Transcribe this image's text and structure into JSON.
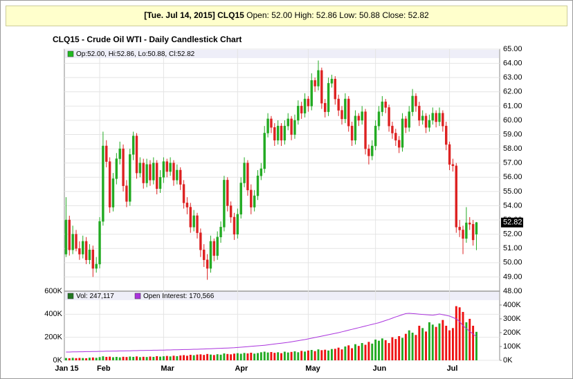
{
  "header": {
    "date": "[Tue. Jul 14, 2015]",
    "symbol": "CLQ15",
    "quote": "Open: 52.00 High: 52.86 Low: 50.88 Close: 52.82"
  },
  "chart_data": [
    {
      "type": "candlestick",
      "title": "CLQ15 - Crude Oil WTI - Daily Candlestick Chart",
      "legend": "Op:52.00, Hi:52.86, Lo:50.88, Cl:52.82",
      "legend_color": "#22bb22",
      "last_label": "52.82",
      "up_color": "#22aa22",
      "down_color": "#dd2222",
      "xlim": [
        -0.5,
        128.9
      ],
      "xticks": [
        {
          "value": 0,
          "label": "Jan 15"
        },
        {
          "value": 10,
          "label": "Feb"
        },
        {
          "value": 29,
          "label": "Mar"
        },
        {
          "value": 51,
          "label": "Apr"
        },
        {
          "value": 72,
          "label": "May"
        },
        {
          "value": 92,
          "label": "Jun"
        },
        {
          "value": 114,
          "label": "Jul"
        }
      ],
      "ylim": [
        48,
        65
      ],
      "yticks": [
        {
          "value": 48,
          "label": "48.00"
        },
        {
          "value": 49,
          "label": "49.00"
        },
        {
          "value": 50,
          "label": "50.00"
        },
        {
          "value": 51,
          "label": "51.00"
        },
        {
          "value": 52,
          "label": "52.00"
        },
        {
          "value": 53,
          "label": "53.00"
        },
        {
          "value": 54,
          "label": "54.00"
        },
        {
          "value": 55,
          "label": "55.00"
        },
        {
          "value": 56,
          "label": "56.00"
        },
        {
          "value": 57,
          "label": "57.00"
        },
        {
          "value": 58,
          "label": "58.00"
        },
        {
          "value": 59,
          "label": "59.00"
        },
        {
          "value": 60,
          "label": "60.00"
        },
        {
          "value": 61,
          "label": "61.00"
        },
        {
          "value": 62,
          "label": "62.00"
        },
        {
          "value": 63,
          "label": "63.00"
        },
        {
          "value": 64,
          "label": "64.00"
        },
        {
          "value": 65,
          "label": "65.00"
        }
      ],
      "grid": true,
      "open": [
        50.6,
        53.0,
        50.9,
        52.0,
        51.0,
        50.6,
        51.5,
        50.2,
        50.9,
        49.6,
        49.9,
        52.9,
        58.2,
        57.1,
        53.9,
        55.9,
        57.3,
        58.0,
        55.4,
        54.3,
        57.6,
        58.9,
        56.3,
        57.0,
        55.6,
        56.9,
        55.8,
        57.0,
        55.2,
        56.0,
        57.1,
        56.4,
        57.0,
        55.8,
        56.5,
        55.5,
        54.2,
        53.9,
        52.5,
        53.3,
        52.1,
        50.9,
        50.2,
        49.6,
        51.5,
        50.5,
        51.8,
        52.5,
        55.8,
        54.0,
        53.2,
        52.0,
        53.4,
        55.6,
        57.0,
        55.1,
        53.9,
        54.7,
        56.1,
        56.6,
        59.1,
        60.1,
        59.5,
        58.6,
        59.6,
        58.6,
        59.6,
        60.1,
        59.0,
        60.0,
        61.0,
        60.5,
        61.5,
        61.0,
        62.8,
        62.4,
        63.5,
        61.2,
        60.6,
        62.6,
        62.9,
        61.5,
        60.7,
        60.1,
        61.5,
        59.6,
        58.6,
        60.3,
        60.0,
        60.6,
        58.0,
        57.5,
        58.2,
        59.6,
        60.6,
        61.3,
        60.9,
        59.6,
        59.1,
        58.6,
        58.1,
        60.1,
        59.5,
        60.6,
        61.7,
        61.0,
        60.0,
        60.3,
        59.5,
        60.0,
        60.5,
        59.9,
        60.5,
        59.6,
        58.3,
        56.9,
        56.8,
        52.5,
        52.3,
        51.7,
        52.8,
        52.7,
        52.0
      ],
      "high": [
        54.6,
        53.3,
        52.6,
        52.3,
        51.5,
        51.9,
        51.8,
        51.3,
        51.2,
        50.4,
        53.2,
        59.2,
        58.6,
        57.4,
        56.3,
        57.7,
        58.5,
        58.3,
        55.8,
        58.0,
        59.2,
        59.1,
        57.4,
        57.3,
        57.3,
        57.2,
        57.4,
        57.2,
        56.5,
        57.4,
        57.3,
        57.4,
        57.2,
        56.9,
        56.7,
        55.8,
        54.6,
        54.2,
        53.7,
        53.5,
        52.4,
        51.3,
        50.6,
        51.9,
        51.7,
        52.2,
        52.9,
        56.1,
        56.0,
        54.3,
        53.5,
        53.8,
        56.0,
        57.4,
        57.2,
        55.5,
        55.1,
        56.5,
        57.0,
        59.6,
        60.5,
        60.3,
        59.8,
        60.0,
        59.8,
        60.0,
        60.5,
        60.3,
        60.4,
        61.4,
        61.3,
        61.9,
        61.7,
        63.3,
        63.0,
        64.2,
        63.7,
        61.5,
        63.0,
        63.2,
        63.1,
        61.8,
        61.0,
        61.9,
        61.7,
        59.9,
        60.7,
        60.5,
        61.0,
        60.8,
        58.3,
        58.6,
        60.0,
        61.0,
        61.7,
        61.5,
        61.1,
        59.9,
        59.4,
        58.9,
        60.5,
        60.3,
        61.0,
        62.2,
        61.9,
        61.3,
        60.7,
        60.5,
        60.4,
        60.9,
        60.7,
        60.9,
        60.7,
        59.9,
        58.5,
        57.3,
        57.0,
        53.0,
        52.6,
        53.9,
        53.2,
        53.0,
        52.86
      ],
      "low": [
        50.4,
        50.5,
        50.6,
        50.8,
        50.2,
        50.3,
        49.9,
        49.9,
        49.0,
        49.3,
        49.6,
        52.6,
        56.7,
        53.5,
        53.6,
        55.5,
        56.9,
        55.0,
        53.9,
        54.0,
        57.2,
        55.9,
        56.0,
        55.2,
        55.3,
        55.4,
        55.5,
        54.8,
        54.9,
        55.6,
        56.0,
        56.1,
        55.4,
        55.5,
        55.1,
        53.8,
        53.4,
        52.1,
        52.2,
        51.7,
        50.4,
        49.7,
        48.8,
        49.3,
        50.1,
        50.2,
        51.4,
        52.2,
        53.6,
        52.8,
        51.6,
        51.7,
        53.1,
        55.3,
        54.7,
        53.4,
        53.6,
        54.4,
        55.8,
        56.3,
        58.8,
        59.1,
        58.2,
        58.3,
        58.2,
        58.3,
        59.3,
        58.6,
        58.7,
        59.7,
        60.1,
        60.2,
        60.6,
        60.7,
        62.0,
        62.1,
        60.8,
        60.2,
        60.3,
        62.3,
        61.1,
        60.3,
        59.7,
        59.8,
        59.2,
        58.2,
        58.3,
        59.6,
        59.7,
        57.6,
        56.9,
        57.2,
        57.9,
        59.3,
        60.3,
        60.5,
        59.2,
        58.7,
        58.2,
        57.7,
        57.8,
        59.1,
        59.2,
        60.3,
        60.6,
        59.6,
        59.7,
        59.1,
        59.2,
        59.7,
        59.5,
        59.6,
        59.2,
        57.9,
        56.5,
        56.4,
        52.1,
        51.8,
        50.6,
        51.4,
        52.3,
        51.2,
        50.88
      ],
      "close": [
        53.0,
        50.9,
        52.0,
        51.0,
        50.6,
        51.5,
        50.2,
        50.9,
        49.6,
        49.9,
        52.9,
        58.2,
        57.1,
        53.9,
        55.9,
        57.3,
        58.0,
        55.4,
        54.3,
        57.6,
        58.9,
        56.3,
        57.0,
        55.6,
        56.9,
        55.8,
        57.0,
        55.2,
        56.0,
        57.1,
        56.4,
        57.0,
        55.8,
        56.5,
        55.5,
        54.2,
        53.9,
        52.5,
        53.3,
        52.1,
        50.9,
        50.2,
        49.6,
        51.5,
        50.5,
        51.8,
        52.5,
        55.8,
        54.0,
        53.2,
        52.0,
        53.4,
        55.6,
        57.0,
        55.1,
        53.9,
        54.7,
        56.1,
        56.6,
        59.1,
        60.1,
        59.5,
        58.6,
        59.6,
        58.6,
        59.6,
        60.1,
        59.0,
        60.0,
        61.0,
        60.5,
        61.5,
        61.0,
        62.8,
        62.4,
        63.5,
        61.2,
        60.6,
        62.6,
        62.9,
        61.5,
        60.7,
        60.1,
        61.5,
        59.6,
        58.6,
        60.3,
        60.0,
        60.6,
        58.0,
        57.5,
        58.2,
        59.6,
        60.6,
        61.3,
        60.9,
        59.6,
        59.1,
        58.6,
        58.1,
        60.1,
        59.5,
        60.6,
        61.7,
        61.0,
        60.0,
        60.3,
        59.5,
        60.0,
        60.5,
        59.9,
        60.5,
        59.6,
        58.3,
        56.9,
        56.8,
        52.5,
        52.3,
        51.7,
        52.8,
        52.7,
        51.6,
        52.82
      ]
    },
    {
      "type": "volume",
      "series": [
        {
          "name": "Vol: 247,117",
          "color": "#227722",
          "values": [
            20000,
            18000,
            22000,
            19000,
            21000,
            20000,
            18000,
            23000,
            25000,
            22000,
            28000,
            35000,
            30000,
            32000,
            27000,
            30000,
            26000,
            31000,
            29000,
            33000,
            30000,
            34000,
            28000,
            31000,
            29000,
            33000,
            30000,
            36000,
            32000,
            35000,
            38000,
            34000,
            40000,
            36000,
            42000,
            45000,
            40000,
            48000,
            44000,
            50000,
            52000,
            47000,
            55000,
            50000,
            46000,
            53000,
            49000,
            60000,
            55000,
            52000,
            58000,
            62000,
            57000,
            64000,
            60000,
            66000,
            58000,
            63000,
            70000,
            75000,
            68000,
            72000,
            65000,
            70000,
            62000,
            75000,
            68000,
            73000,
            78000,
            70000,
            82000,
            76000,
            85000,
            90000,
            80000,
            95000,
            88000,
            92000,
            85000,
            98000,
            100000,
            110000,
            95000,
            120000,
            130000,
            105000,
            140000,
            125000,
            150000,
            135000,
            160000,
            145000,
            180000,
            170000,
            190000,
            175000,
            150000,
            200000,
            185000,
            210000,
            195000,
            230000,
            260000,
            240000,
            220000,
            300000,
            280000,
            250000,
            330000,
            310000,
            290000,
            320000,
            350000,
            300000,
            260000,
            280000,
            470000,
            460000,
            420000,
            330000,
            360000,
            300000,
            247117
          ]
        },
        {
          "name": "Open Interest: 170,566",
          "color": "#aa33dd",
          "axis": "y2",
          "values": [
            60000,
            60000,
            61000,
            61000,
            62000,
            62000,
            63000,
            63000,
            64000,
            64000,
            65000,
            65000,
            66000,
            66000,
            67000,
            67000,
            68000,
            68000,
            69000,
            69000,
            70000,
            70000,
            71000,
            71000,
            72000,
            72000,
            73000,
            73000,
            74000,
            74000,
            75000,
            75000,
            76000,
            76000,
            77000,
            78000,
            78000,
            79000,
            80000,
            80000,
            81000,
            82000,
            83000,
            84000,
            85000,
            86000,
            87000,
            88000,
            89000,
            90000,
            91000,
            93000,
            95000,
            97000,
            99000,
            101000,
            103000,
            105000,
            107000,
            109000,
            112000,
            115000,
            118000,
            121000,
            124000,
            127000,
            130000,
            134000,
            138000,
            142000,
            146000,
            150000,
            155000,
            160000,
            165000,
            170000,
            175000,
            180000,
            185000,
            190000,
            195000,
            200000,
            206000,
            212000,
            218000,
            224000,
            230000,
            236000,
            242000,
            248000,
            254000,
            260000,
            266000,
            272000,
            280000,
            288000,
            296000,
            305000,
            314000,
            322000,
            330000,
            338000,
            340000,
            338000,
            336000,
            334000,
            332000,
            330000,
            328000,
            326000,
            330000,
            335000,
            330000,
            325000,
            320000,
            310000,
            300000,
            280000,
            250000,
            230000,
            210000,
            190000,
            170566
          ]
        }
      ],
      "up_color": "#22aa22",
      "down_color": "#ee1111",
      "ylim": [
        0,
        600000
      ],
      "yticks": [
        {
          "value": 0,
          "label": "0K"
        },
        {
          "value": 200000,
          "label": "200K"
        },
        {
          "value": 400000,
          "label": "400K"
        },
        {
          "value": 600000,
          "label": "600K"
        }
      ],
      "y2lim": [
        0,
        500000
      ],
      "y2ticks": [
        {
          "value": 0,
          "label": "0K"
        },
        {
          "value": 100000,
          "label": "100K"
        },
        {
          "value": 200000,
          "label": "200K"
        },
        {
          "value": 300000,
          "label": "300K"
        },
        {
          "value": 400000,
          "label": "400K"
        }
      ],
      "grid": true
    }
  ]
}
